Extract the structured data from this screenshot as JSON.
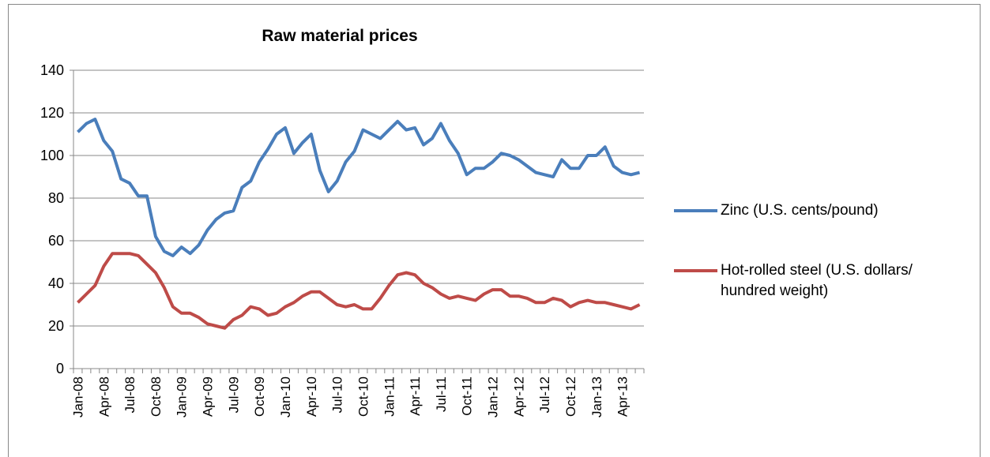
{
  "chart_data": {
    "type": "line",
    "title": "Raw material prices",
    "categories": [
      "Jan-08",
      null,
      null,
      "Apr-08",
      null,
      null,
      "Jul-08",
      null,
      null,
      "Oct-08",
      null,
      null,
      "Jan-09",
      null,
      null,
      "Apr-09",
      null,
      null,
      "Jul-09",
      null,
      null,
      "Oct-09",
      null,
      null,
      "Jan-10",
      null,
      null,
      "Apr-10",
      null,
      null,
      "Jul-10",
      null,
      null,
      "Oct-10",
      null,
      null,
      "Jan-11",
      null,
      null,
      "Apr-11",
      null,
      null,
      "Jul-11",
      null,
      null,
      "Oct-11",
      null,
      null,
      "Jan-12",
      null,
      null,
      "Apr-12",
      null,
      null,
      "Jul-12",
      null,
      null,
      "Oct-12",
      null,
      null,
      "Jan-13",
      null,
      null,
      "Apr-13",
      null,
      null
    ],
    "series": [
      {
        "name": "Zinc (U.S. cents/pound)",
        "color": "#4a7ebb",
        "values": [
          111,
          115,
          117,
          107,
          102,
          89,
          87,
          81,
          81,
          62,
          55,
          53,
          57,
          54,
          58,
          65,
          70,
          73,
          74,
          85,
          88,
          97,
          103,
          110,
          113,
          101,
          106,
          110,
          93,
          83,
          88,
          97,
          102,
          112,
          110,
          108,
          112,
          116,
          112,
          113,
          105,
          108,
          115,
          107,
          101,
          91,
          94,
          94,
          97,
          101,
          100,
          98,
          95,
          92,
          91,
          90,
          98,
          94,
          94,
          100,
          100,
          104,
          95,
          92,
          91,
          92
        ]
      },
      {
        "name": "Hot-rolled steel (U.S. dollars/ hundred weight)",
        "color": "#be4b48",
        "values": [
          31,
          35,
          39,
          48,
          54,
          54,
          54,
          53,
          49,
          45,
          38,
          29,
          26,
          26,
          24,
          21,
          20,
          19,
          23,
          25,
          29,
          28,
          25,
          26,
          29,
          31,
          34,
          36,
          36,
          33,
          30,
          29,
          30,
          28,
          28,
          33,
          39,
          44,
          45,
          44,
          40,
          38,
          35,
          33,
          34,
          33,
          32,
          35,
          37,
          37,
          34,
          34,
          33,
          31,
          31,
          33,
          32,
          29,
          31,
          32,
          31,
          31,
          30,
          29,
          28,
          30
        ]
      }
    ],
    "ylim": [
      0,
      140
    ],
    "yticks": [
      0,
      20,
      40,
      60,
      80,
      100,
      120,
      140
    ],
    "grid": true,
    "legend": "right"
  }
}
